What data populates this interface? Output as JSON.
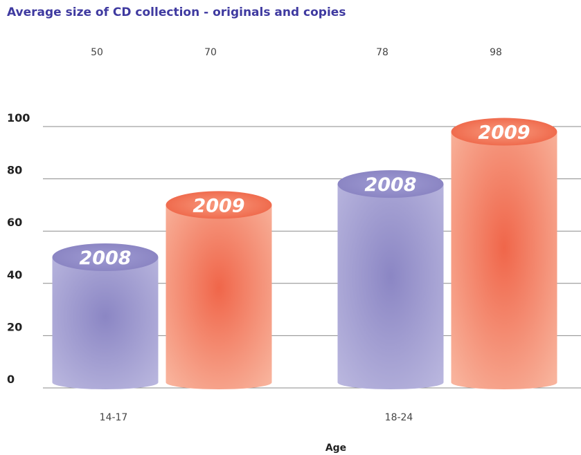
{
  "title": "Average size of CD collection - originals and copies",
  "chart_data": {
    "type": "bar",
    "title": "Average size of CD collection - originals and copies",
    "xlabel": "Age",
    "ylabel": "",
    "categories": [
      "14-17",
      "18-24"
    ],
    "series": [
      {
        "name": "2008",
        "values": [
          50,
          78
        ],
        "color": "#9a96cc"
      },
      {
        "name": "2009",
        "values": [
          70,
          98
        ],
        "color": "#f27a5e"
      }
    ],
    "ylim": [
      0,
      100
    ],
    "yticks": [
      0,
      20,
      40,
      60,
      80,
      100
    ],
    "grid": true,
    "legend": "none"
  }
}
